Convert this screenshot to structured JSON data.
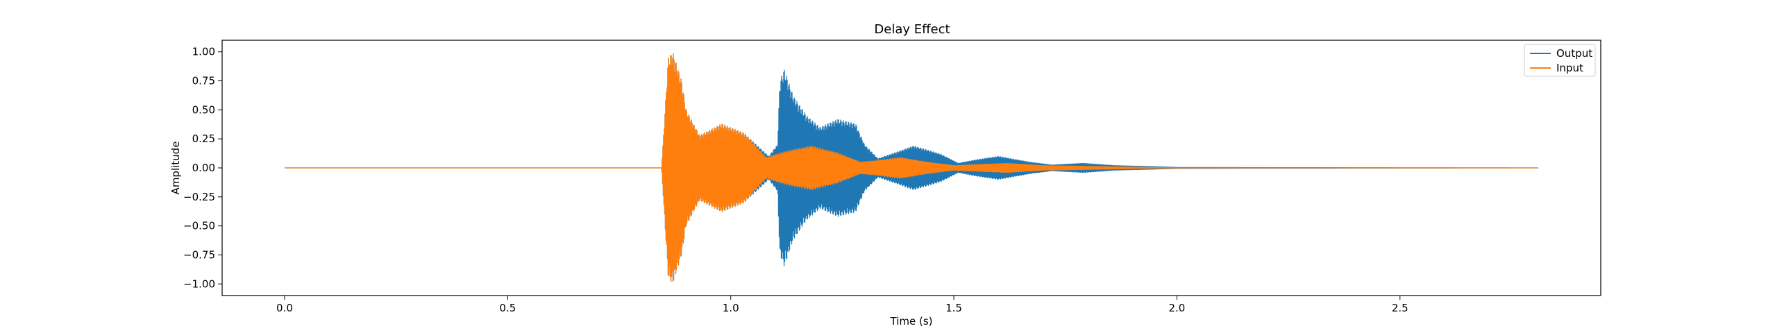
{
  "chart_data": {
    "type": "line",
    "title": "Delay Effect",
    "xlabel": "Time (s)",
    "ylabel": "Amplitude",
    "xlim": [
      -0.14,
      2.95
    ],
    "ylim": [
      -1.1,
      1.1
    ],
    "xticks": [
      0.0,
      0.5,
      1.0,
      1.5,
      2.0,
      2.5
    ],
    "xtick_labels": [
      "0.0",
      "0.5",
      "1.0",
      "1.5",
      "2.0",
      "2.5"
    ],
    "yticks": [
      1.0,
      0.75,
      0.5,
      0.25,
      0.0,
      -0.25,
      -0.5,
      -0.75,
      -1.0
    ],
    "ytick_labels": [
      "1.00",
      "0.75",
      "0.50",
      "0.25",
      "0.00",
      "−0.25",
      "−0.50",
      "−0.75",
      "−1.00"
    ],
    "grid": false,
    "legend_position": "top-right",
    "series": [
      {
        "name": "Output",
        "color": "#1f77b4",
        "x_range": [
          0.0,
          2.81
        ],
        "envelope": [
          {
            "t": 0.0,
            "a": 0.0
          },
          {
            "t": 0.845,
            "a": 0.0
          },
          {
            "t": 0.86,
            "a": 0.95
          },
          {
            "t": 0.87,
            "a": 1.0
          },
          {
            "t": 0.89,
            "a": 0.75
          },
          {
            "t": 0.9,
            "a": 0.5
          },
          {
            "t": 0.93,
            "a": 0.28
          },
          {
            "t": 0.98,
            "a": 0.38
          },
          {
            "t": 1.03,
            "a": 0.3
          },
          {
            "t": 1.085,
            "a": 0.1
          },
          {
            "t": 1.105,
            "a": 0.2
          },
          {
            "t": 1.11,
            "a": 0.75
          },
          {
            "t": 1.12,
            "a": 0.85
          },
          {
            "t": 1.14,
            "a": 0.62
          },
          {
            "t": 1.17,
            "a": 0.45
          },
          {
            "t": 1.2,
            "a": 0.35
          },
          {
            "t": 1.24,
            "a": 0.42
          },
          {
            "t": 1.28,
            "a": 0.38
          },
          {
            "t": 1.3,
            "a": 0.2
          },
          {
            "t": 1.33,
            "a": 0.08
          },
          {
            "t": 1.36,
            "a": 0.12
          },
          {
            "t": 1.41,
            "a": 0.19
          },
          {
            "t": 1.47,
            "a": 0.12
          },
          {
            "t": 1.51,
            "a": 0.04
          },
          {
            "t": 1.55,
            "a": 0.07
          },
          {
            "t": 1.6,
            "a": 0.1
          },
          {
            "t": 1.67,
            "a": 0.05
          },
          {
            "t": 1.72,
            "a": 0.025
          },
          {
            "t": 1.79,
            "a": 0.04
          },
          {
            "t": 1.86,
            "a": 0.02
          },
          {
            "t": 1.94,
            "a": 0.012
          },
          {
            "t": 2.0,
            "a": 0.004
          },
          {
            "t": 2.81,
            "a": 0.0
          }
        ]
      },
      {
        "name": "Input",
        "color": "#ff7f0e",
        "x_range": [
          0.0,
          2.81
        ],
        "envelope": [
          {
            "t": 0.0,
            "a": 0.0
          },
          {
            "t": 0.845,
            "a": 0.0
          },
          {
            "t": 0.86,
            "a": 0.95
          },
          {
            "t": 0.87,
            "a": 1.0
          },
          {
            "t": 0.89,
            "a": 0.75
          },
          {
            "t": 0.9,
            "a": 0.5
          },
          {
            "t": 0.93,
            "a": 0.28
          },
          {
            "t": 0.98,
            "a": 0.38
          },
          {
            "t": 1.03,
            "a": 0.3
          },
          {
            "t": 1.08,
            "a": 0.09
          },
          {
            "t": 1.12,
            "a": 0.14
          },
          {
            "t": 1.18,
            "a": 0.19
          },
          {
            "t": 1.24,
            "a": 0.13
          },
          {
            "t": 1.29,
            "a": 0.05
          },
          {
            "t": 1.32,
            "a": 0.06
          },
          {
            "t": 1.38,
            "a": 0.09
          },
          {
            "t": 1.44,
            "a": 0.05
          },
          {
            "t": 1.5,
            "a": 0.02
          },
          {
            "t": 1.56,
            "a": 0.03
          },
          {
            "t": 1.62,
            "a": 0.04
          },
          {
            "t": 1.7,
            "a": 0.02
          },
          {
            "t": 1.78,
            "a": 0.015
          },
          {
            "t": 1.86,
            "a": 0.01
          },
          {
            "t": 1.94,
            "a": 0.004
          },
          {
            "t": 2.0,
            "a": 0.0
          },
          {
            "t": 2.81,
            "a": 0.0
          }
        ]
      }
    ]
  }
}
